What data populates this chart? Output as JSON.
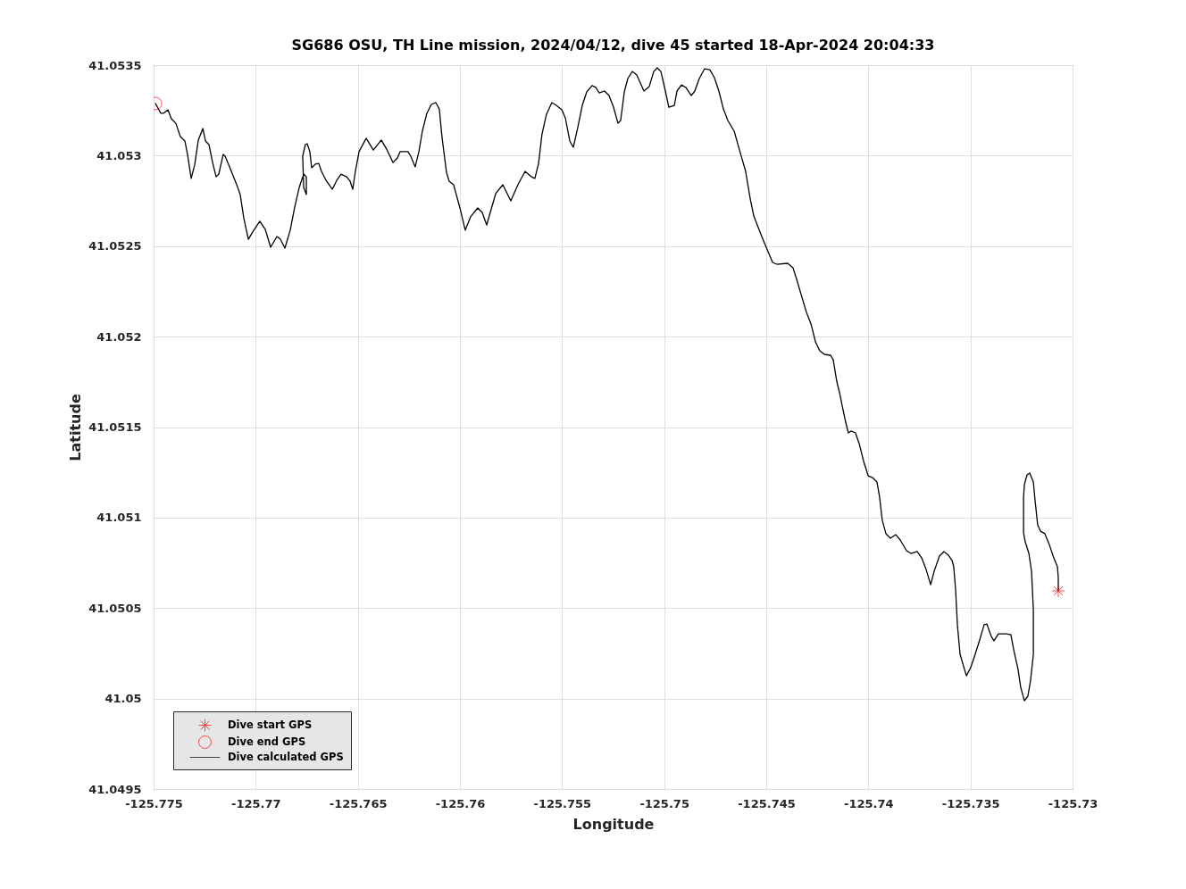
{
  "chart_data": {
    "type": "line",
    "title": "SG686 OSU, TH Line mission, 2024/04/12, dive 45 started 18-Apr-2024 20:04:33",
    "xlabel": "Longitude",
    "ylabel": "Latitude",
    "xlim": [
      -125.775,
      -125.73
    ],
    "xticks": [
      -125.775,
      -125.77,
      -125.765,
      -125.76,
      -125.755,
      -125.75,
      -125.745,
      -125.74,
      -125.735,
      -125.73
    ],
    "ylim": [
      41.0495,
      41.0535
    ],
    "yticks": [
      41.0495,
      41.05,
      41.0505,
      41.051,
      41.0515,
      41.052,
      41.0525,
      41.053,
      41.0535
    ],
    "grid": true,
    "legend": "bottom left",
    "series": [
      {
        "name": "Dive start GPS",
        "type": "scatter",
        "marker": "cross",
        "color": "#ff0000",
        "x": [
          -125.7307
        ],
        "values": [
          41.050595
        ]
      },
      {
        "name": "Dive end GPS",
        "type": "scatter",
        "marker": "circle",
        "color": "#ff0000",
        "x": [
          -125.77491
        ],
        "values": [
          41.053288
        ]
      },
      {
        "name": "Dive calculated GPS",
        "color": "#000000",
        "x": [
          -125.77491,
          -125.77465,
          -125.77452,
          -125.7743,
          -125.77413,
          -125.77391,
          -125.77369,
          -125.77347,
          -125.77334,
          -125.77316,
          -125.77299,
          -125.77281,
          -125.77259,
          -125.77246,
          -125.77229,
          -125.77211,
          -125.77194,
          -125.77181,
          -125.77159,
          -125.7715,
          -125.77128,
          -125.77093,
          -125.77076,
          -125.77058,
          -125.77036,
          -125.77015,
          -125.7698,
          -125.76953,
          -125.76927,
          -125.76896,
          -125.76879,
          -125.76857,
          -125.76831,
          -125.76809,
          -125.76787,
          -125.76765,
          -125.76752,
          -125.76752,
          -125.76765,
          -125.7677,
          -125.76757,
          -125.76748,
          -125.76735,
          -125.76726,
          -125.76708,
          -125.76691,
          -125.76678,
          -125.76656,
          -125.76625,
          -125.76603,
          -125.76582,
          -125.76555,
          -125.76538,
          -125.76525,
          -125.76512,
          -125.76494,
          -125.76459,
          -125.76424,
          -125.76385,
          -125.76359,
          -125.76328,
          -125.76306,
          -125.76293,
          -125.76254,
          -125.76241,
          -125.76219,
          -125.76201,
          -125.76184,
          -125.76162,
          -125.7614,
          -125.76118,
          -125.76101,
          -125.76088,
          -125.76066,
          -125.76053,
          -125.76031,
          -125.76,
          -125.75974,
          -125.75948,
          -125.75913,
          -125.75891,
          -125.75869,
          -125.75825,
          -125.7579,
          -125.75751,
          -125.75716,
          -125.75681,
          -125.7565,
          -125.75633,
          -125.75615,
          -125.75598,
          -125.75576,
          -125.7555,
          -125.75528,
          -125.75501,
          -125.75484,
          -125.75462,
          -125.75445,
          -125.75423,
          -125.75401,
          -125.75379,
          -125.75353,
          -125.75335,
          -125.75318,
          -125.75292,
          -125.7527,
          -125.75248,
          -125.75226,
          -125.75213,
          -125.75195,
          -125.75178,
          -125.75156,
          -125.75134,
          -125.75099,
          -125.75073,
          -125.75051,
          -125.75034,
          -125.75016,
          -125.74994,
          -125.74977,
          -125.7495,
          -125.74937,
          -125.74915,
          -125.74894,
          -125.74867,
          -125.7485,
          -125.74828,
          -125.74802,
          -125.74776,
          -125.74754,
          -125.74732,
          -125.7471,
          -125.74688,
          -125.74657,
          -125.74631,
          -125.74601,
          -125.74579,
          -125.74561,
          -125.74522,
          -125.74491,
          -125.74469,
          -125.74448,
          -125.74395,
          -125.74369,
          -125.74351,
          -125.74329,
          -125.74303,
          -125.74281,
          -125.74259,
          -125.74238,
          -125.74216,
          -125.74185,
          -125.74172,
          -125.74155,
          -125.74141,
          -125.74128,
          -125.74111,
          -125.74098,
          -125.74085,
          -125.74063,
          -125.74045,
          -125.74023,
          -125.74001,
          -125.7398,
          -125.73958,
          -125.73945,
          -125.73932,
          -125.73914,
          -125.73892,
          -125.73866,
          -125.73844,
          -125.73813,
          -125.73792,
          -125.73761,
          -125.73739,
          -125.73717,
          -125.73695,
          -125.73678,
          -125.73652,
          -125.7363,
          -125.73608,
          -125.7359,
          -125.73582,
          -125.73573,
          -125.73564,
          -125.73551,
          -125.7352,
          -125.73499,
          -125.73477,
          -125.73455,
          -125.73433,
          -125.7342,
          -125.73398,
          -125.73385,
          -125.73363,
          -125.73324,
          -125.73302,
          -125.73289,
          -125.73267,
          -125.73254,
          -125.73236,
          -125.73219,
          -125.73206,
          -125.73192,
          -125.73192,
          -125.73201,
          -125.73214,
          -125.73232,
          -125.7324,
          -125.7324,
          -125.73236,
          -125.73223,
          -125.7321,
          -125.73192,
          -125.73184,
          -125.73171,
          -125.73157,
          -125.73136,
          -125.73114,
          -125.73092,
          -125.73074,
          -125.7307,
          -125.7307
        ],
        "values": [
          41.053288,
          41.053234,
          41.053234,
          41.053253,
          41.053204,
          41.053179,
          41.053105,
          41.053081,
          41.053007,
          41.052874,
          41.052948,
          41.053086,
          41.05315,
          41.053081,
          41.053061,
          41.052962,
          41.052883,
          41.052898,
          41.053007,
          41.052997,
          41.052938,
          41.052839,
          41.052785,
          41.052652,
          41.052538,
          41.052578,
          41.052637,
          41.052592,
          41.052494,
          41.052553,
          41.052538,
          41.052489,
          41.052588,
          41.052716,
          41.052824,
          41.052898,
          41.052883,
          41.052785,
          41.052824,
          41.052997,
          41.053061,
          41.053066,
          41.053022,
          41.052933,
          41.052953,
          41.052957,
          41.052913,
          41.052864,
          41.052814,
          41.052864,
          41.052898,
          41.052883,
          41.052859,
          41.052814,
          41.052913,
          41.053022,
          41.053096,
          41.053031,
          41.053086,
          41.053036,
          41.052962,
          41.052987,
          41.053022,
          41.053022,
          41.052997,
          41.052938,
          41.053022,
          41.053135,
          41.053234,
          41.053283,
          41.053293,
          41.053258,
          41.053105,
          41.052908,
          41.052859,
          41.052839,
          41.052711,
          41.052588,
          41.052662,
          41.052711,
          41.052686,
          41.052617,
          41.05279,
          41.052839,
          41.05275,
          41.052839,
          41.052913,
          41.052883,
          41.052874,
          41.052957,
          41.05312,
          41.053229,
          41.053293,
          41.053278,
          41.053253,
          41.053209,
          41.053081,
          41.053046,
          41.053155,
          41.053278,
          41.053352,
          41.053387,
          41.053377,
          41.053347,
          41.053357,
          41.053332,
          41.053268,
          41.053179,
          41.053194,
          41.053352,
          41.053426,
          41.053465,
          41.053446,
          41.053357,
          41.053382,
          41.053465,
          41.053485,
          41.053465,
          41.053357,
          41.053268,
          41.053278,
          41.053357,
          41.053391,
          41.053377,
          41.053332,
          41.053357,
          41.053426,
          41.05348,
          41.053475,
          41.053431,
          41.053357,
          41.053258,
          41.053194,
          41.053135,
          41.053031,
          41.052913,
          41.052765,
          41.052666,
          41.052553,
          41.052469,
          41.05241,
          41.0524,
          41.052405,
          41.05238,
          41.052316,
          41.052232,
          41.052134,
          41.05207,
          41.051971,
          41.051922,
          41.051902,
          41.051897,
          41.051872,
          41.051754,
          41.05169,
          41.051616,
          41.051527,
          41.051468,
          41.051478,
          41.051468,
          41.051409,
          41.05131,
          41.051231,
          41.051221,
          41.051197,
          41.051113,
          41.050985,
          41.050911,
          41.050886,
          41.050906,
          41.050876,
          41.050817,
          41.050802,
          41.050812,
          41.050777,
          41.050713,
          41.050629,
          41.050703,
          41.050787,
          41.050812,
          41.050792,
          41.050763,
          41.050728,
          41.050605,
          41.050408,
          41.050245,
          41.050126,
          41.050171,
          41.050245,
          41.050324,
          41.050408,
          41.050412,
          41.050343,
          41.050319,
          41.050358,
          41.050358,
          41.050353,
          41.050274,
          41.050161,
          41.050062,
          41.049988,
          41.050013,
          41.050097,
          41.050245,
          41.050491,
          41.050703,
          41.050802,
          41.050866,
          41.050916,
          41.051113,
          41.051182,
          41.051236,
          41.051246,
          41.051197,
          41.051098,
          41.05096,
          41.050925,
          41.050911,
          41.050851,
          41.050777,
          41.050728,
          41.050669,
          41.050595
        ]
      }
    ]
  }
}
